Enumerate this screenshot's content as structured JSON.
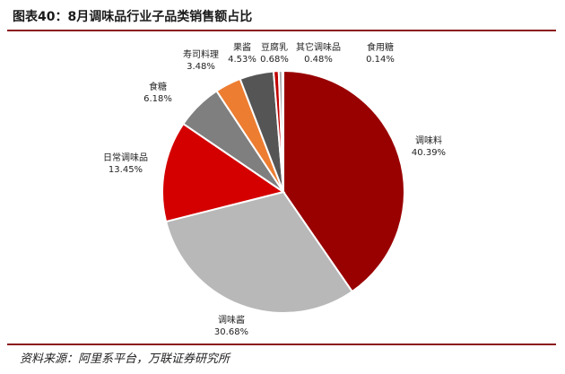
{
  "title": "图表40：8月调味品行业子品类销售额占比",
  "source": "资料来源：阿里系平台，万联证券研究所",
  "chart_data": {
    "type": "pie",
    "title": "图表40：8月调味品行业子品类销售额占比",
    "slices": [
      {
        "name": "调味料",
        "value": 40.39,
        "label": "40.39%",
        "color": "#990000"
      },
      {
        "name": "调味酱",
        "value": 30.68,
        "label": "30.68%",
        "color": "#b8b8b8"
      },
      {
        "name": "日常调味品",
        "value": 13.45,
        "label": "13.45%",
        "color": "#d40000"
      },
      {
        "name": "食糖",
        "value": 6.18,
        "label": "6.18%",
        "color": "#7f7f7f"
      },
      {
        "name": "寿司料理",
        "value": 3.48,
        "label": "3.48%",
        "color": "#ed7d31"
      },
      {
        "name": "果酱",
        "value": 4.53,
        "label": "4.53%",
        "color": "#555555"
      },
      {
        "name": "豆腐乳",
        "value": 0.68,
        "label": "0.68%",
        "color": "#c00000"
      },
      {
        "name": "其它调味品",
        "value": 0.48,
        "label": "0.48%",
        "color": "#a6a6a6"
      },
      {
        "name": "食用糖",
        "value": 0.14,
        "label": "0.14%",
        "color": "#404040"
      }
    ]
  }
}
